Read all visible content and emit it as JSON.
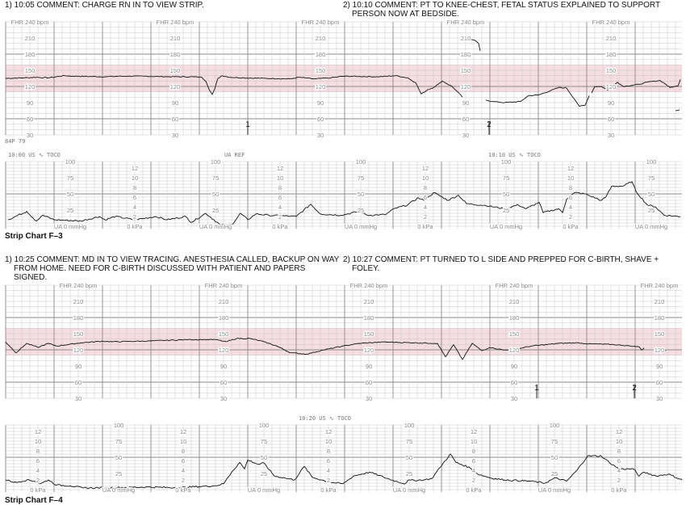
{
  "strips": [
    {
      "title": "Strip Chart F–3",
      "comments": [
        "1) 10:05 COMMENT: CHARGE RN IN TO VIEW STRIP.",
        "2) 10:10 COMMENT: PT TO KNEE-CHEST, FETAL STATUS EXPLAINED TO SUPPORT PERSON NOW AT BEDSIDE."
      ],
      "device_code": "84P 79",
      "header_labels": [
        "10:00 US ∿ TOCO",
        "UA REF",
        "10:10 US ∿ TOCO"
      ]
    },
    {
      "title": "Strip Chart F–4",
      "comments": [
        "1) 10:25 COMMENT: MD IN TO VIEW TRACING. ANESTHESIA CALLED, BACKUP ON WAY FROM HOME. NEED FOR C-BIRTH DISCUSSED WITH PATIENT AND PAPERS SIGNED.",
        "2) 10:27 COMMENT: PT TURNED TO L SIDE AND PREPPED FOR C-BIRTH, SHAVE + FOLEY."
      ],
      "header_labels": [
        "10:20 US ∿ TOCO"
      ]
    }
  ],
  "axis_labels": {
    "fhr_top": "FHR 240 bpm",
    "fhr_ticks": [
      "210",
      "180",
      "150",
      "120",
      "90",
      "60",
      "30"
    ],
    "ua_ticks": [
      "100",
      "75",
      "50",
      "25"
    ],
    "ua_zero": "UA 0   mmHg",
    "kpa_ticks": [
      "12",
      "10",
      "8",
      "6",
      "4",
      "2"
    ],
    "kpa_zero": "0 kPa"
  },
  "colors": {
    "normal_band": "#f5dde2",
    "grid_minor": "#c8c8c8",
    "grid_major": "#8a8a8a",
    "trace": "#111111"
  },
  "chart_data": [
    {
      "type": "line",
      "title": "Strip Chart F-3",
      "x_units": "seconds from strip start (10:00)",
      "fhr": {
        "ylabel": "FHR",
        "units": "bpm",
        "ylim": [
          30,
          240
        ],
        "normal_band": [
          110,
          160
        ],
        "event_markers": [
          {
            "label": "1",
            "t": 300
          },
          {
            "label": "2",
            "t": 599
          }
        ],
        "segments": [
          [
            [
              0,
              135
            ],
            [
              23,
              136
            ],
            [
              38,
              137
            ],
            [
              53,
              136
            ],
            [
              73,
              140
            ],
            [
              83,
              139
            ],
            [
              123,
              138
            ],
            [
              143,
              139
            ],
            [
              173,
              139
            ],
            [
              203,
              138
            ],
            [
              233,
              138
            ],
            [
              243,
              137
            ],
            [
              248,
              130
            ],
            [
              253,
              112
            ],
            [
              256,
              105
            ],
            [
              259,
              115
            ],
            [
              263,
              135
            ],
            [
              268,
              140
            ],
            [
              278,
              137
            ],
            [
              293,
              136
            ],
            [
              323,
              135
            ],
            [
              353,
              134
            ],
            [
              363,
              137
            ],
            [
              383,
              134
            ],
            [
              403,
              136
            ],
            [
              418,
              139
            ],
            [
              463,
              138
            ],
            [
              483,
              140
            ],
            [
              498,
              136
            ],
            [
              508,
              127
            ],
            [
              515,
              106
            ],
            [
              523,
              114
            ],
            [
              530,
              118
            ],
            [
              536,
              124
            ],
            [
              541,
              130
            ],
            [
              553,
              120
            ],
            [
              560,
              110
            ],
            [
              566,
              100
            ]
          ],
          [
            [
              576,
              208
            ],
            [
              583,
              204
            ],
            [
              586,
              200
            ],
            [
              588,
              186
            ]
          ],
          [
            [
              595,
              95
            ],
            [
              603,
              92
            ],
            [
              618,
              90
            ],
            [
              638,
              92
            ],
            [
              648,
              103
            ],
            [
              660,
              104
            ],
            [
              675,
              112
            ],
            [
              685,
              118
            ],
            [
              695,
              117
            ],
            [
              705,
              96
            ],
            [
              711,
              83
            ],
            [
              718,
              85
            ],
            [
              723,
              103
            ]
          ],
          [
            [
              726,
              108
            ],
            [
              730,
              120
            ],
            [
              738,
              120
            ],
            [
              746,
              113
            ],
            [
              751,
              120
            ],
            [
              758,
              128
            ],
            [
              765,
              120
            ],
            [
              785,
              124
            ],
            [
              795,
              128
            ],
            [
              811,
              131
            ],
            [
              818,
              124
            ],
            [
              823,
              118
            ],
            [
              833,
              121
            ],
            [
              836,
              133
            ]
          ],
          [
            [
              830,
              75
            ],
            [
              835,
              77
            ]
          ]
        ]
      },
      "ua": {
        "ylabel": "UA",
        "units": "mmHg",
        "ylim": [
          0,
          100
        ],
        "secondary_units": "kPa",
        "secondary_ylim": [
          0,
          13.3
        ],
        "segments": [
          [
            [
              3,
              10
            ],
            [
              26,
              23
            ],
            [
              38,
              8
            ],
            [
              46,
              17
            ],
            [
              60,
              10
            ],
            [
              93,
              8
            ],
            [
              116,
              15
            ],
            [
              123,
              10
            ],
            [
              136,
              15
            ],
            [
              160,
              10
            ],
            [
              186,
              15
            ],
            [
              200,
              10
            ],
            [
              223,
              15
            ],
            [
              230,
              6
            ],
            [
              248,
              20
            ],
            [
              266,
              2
            ],
            [
              280,
              2
            ],
            [
              291,
              20
            ],
            [
              300,
              10
            ],
            [
              310,
              19
            ],
            [
              326,
              17
            ],
            [
              360,
              15
            ],
            [
              378,
              34
            ],
            [
              390,
              19
            ],
            [
              416,
              17
            ],
            [
              438,
              23
            ],
            [
              448,
              17
            ],
            [
              471,
              18
            ],
            [
              481,
              27
            ],
            [
              498,
              33
            ],
            [
              511,
              44
            ],
            [
              518,
              40
            ],
            [
              531,
              52
            ],
            [
              548,
              40
            ],
            [
              561,
              48
            ],
            [
              571,
              35
            ],
            [
              595,
              32
            ],
            [
              618,
              27
            ],
            [
              635,
              33
            ],
            [
              645,
              27
            ],
            [
              661,
              37
            ],
            [
              666,
              21
            ],
            [
              685,
              27
            ],
            [
              690,
              21
            ],
            [
              695,
              42
            ],
            [
              705,
              52
            ],
            [
              718,
              50
            ],
            [
              738,
              40
            ],
            [
              743,
              44
            ],
            [
              751,
              62
            ],
            [
              765,
              62
            ],
            [
              776,
              69
            ],
            [
              781,
              54
            ],
            [
              795,
              33
            ],
            [
              805,
              30
            ],
            [
              816,
              17
            ],
            [
              836,
              15
            ]
          ]
        ]
      }
    },
    {
      "type": "line",
      "title": "Strip Chart F-4",
      "x_units": "seconds from strip start",
      "fhr": {
        "ylabel": "FHR",
        "units": "bpm",
        "ylim": [
          30,
          240
        ],
        "normal_band": [
          110,
          160
        ],
        "event_markers": [
          {
            "label": "1",
            "t": 658
          },
          {
            "label": "2",
            "t": 779
          }
        ],
        "segments": [
          [
            [
              0,
              134.5
            ],
            [
              13,
              114.5
            ],
            [
              26,
              132
            ],
            [
              40,
              124.5
            ],
            [
              53,
              132
            ],
            [
              63,
              127
            ],
            [
              93,
              133
            ],
            [
              120,
              136
            ],
            [
              133,
              135
            ],
            [
              180,
              136.5
            ],
            [
              226,
              139
            ],
            [
              260,
              139
            ],
            [
              273,
              135
            ],
            [
              286,
              141
            ],
            [
              303,
              141
            ],
            [
              320,
              135
            ],
            [
              336,
              127
            ],
            [
              353,
              114.5
            ],
            [
              373,
              112
            ],
            [
              393,
              119.5
            ],
            [
              418,
              127
            ],
            [
              438,
              132
            ],
            [
              468,
              134.5
            ],
            [
              535,
              132
            ],
            [
              545,
              107
            ],
            [
              555,
              129.5
            ],
            [
              566,
              102
            ],
            [
              578,
              132
            ],
            [
              590,
              118.5
            ],
            [
              600,
              124.5
            ],
            [
              618,
              119.5
            ],
            [
              635,
              122
            ],
            [
              651,
              127
            ],
            [
              685,
              132
            ],
            [
              708,
              133
            ],
            [
              725,
              131
            ],
            [
              751,
              130
            ],
            [
              775,
              127
            ],
            [
              785,
              125.5
            ],
            [
              788,
              119.5
            ],
            [
              791,
              123.5
            ]
          ],
          [
            [
              812,
              121
            ],
            [
              815,
              117
            ],
            [
              818,
              119
            ]
          ]
        ]
      },
      "ua": {
        "ylabel": "UA",
        "units": "mmHg",
        "ylim": [
          0,
          100
        ],
        "secondary_units": "kPa",
        "secondary_ylim": [
          0,
          13.3
        ],
        "segments": [
          [
            [
              0,
              15
            ],
            [
              13,
              11
            ],
            [
              26,
              15
            ],
            [
              36,
              13
            ],
            [
              43,
              9
            ],
            [
              53,
              15
            ],
            [
              63,
              7
            ],
            [
              80,
              6
            ],
            [
              96,
              2.5
            ],
            [
              126,
              3
            ],
            [
              176,
              4
            ],
            [
              210,
              3
            ],
            [
              260,
              6
            ],
            [
              270,
              9
            ],
            [
              280,
              27
            ],
            [
              290,
              42
            ],
            [
              296,
              32
            ],
            [
              300,
              46
            ],
            [
              313,
              39
            ],
            [
              320,
              41
            ],
            [
              333,
              21
            ],
            [
              346,
              18
            ],
            [
              358,
              15
            ],
            [
              370,
              36
            ],
            [
              380,
              19
            ],
            [
              403,
              11
            ],
            [
              418,
              9
            ],
            [
              431,
              21
            ],
            [
              451,
              27
            ],
            [
              478,
              15
            ],
            [
              495,
              9
            ],
            [
              498,
              14
            ],
            [
              518,
              15
            ],
            [
              528,
              17
            ],
            [
              538,
              34
            ],
            [
              551,
              55
            ],
            [
              558,
              42
            ],
            [
              575,
              34
            ],
            [
              585,
              24
            ],
            [
              601,
              18
            ],
            [
              618,
              15
            ],
            [
              651,
              13
            ],
            [
              668,
              10
            ],
            [
              681,
              18
            ],
            [
              695,
              13
            ],
            [
              708,
              30
            ],
            [
              721,
              52
            ],
            [
              738,
              52
            ],
            [
              748,
              42
            ],
            [
              760,
              32
            ],
            [
              778,
              32
            ],
            [
              785,
              21
            ],
            [
              791,
              27
            ],
            [
              806,
              21
            ],
            [
              821,
              24
            ],
            [
              838,
              15
            ]
          ]
        ]
      }
    }
  ]
}
